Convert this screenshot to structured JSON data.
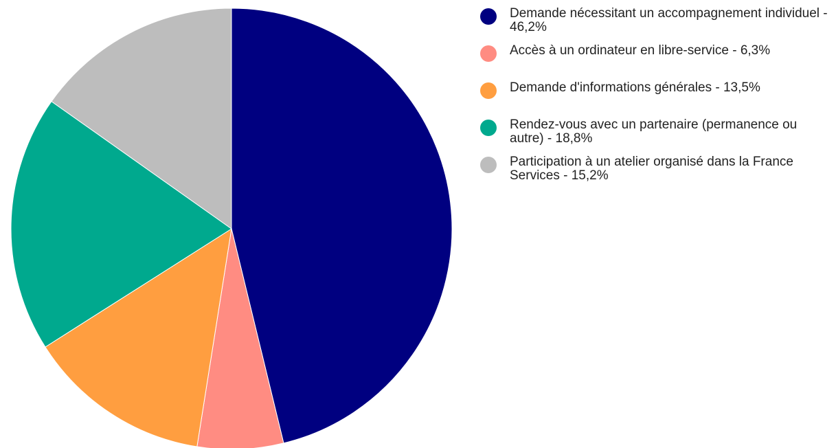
{
  "chart_data": {
    "type": "pie",
    "series": [
      {
        "name": "",
        "values": [
          46.2,
          6.3,
          13.5,
          18.8,
          15.2
        ]
      }
    ],
    "slices": [
      {
        "label": "Demande nécessitant un accompagnement individuel - 46,2%",
        "value": 46.2,
        "color": "#000080"
      },
      {
        "label": "Accès à un ordinateur en libre-service - 6,3%",
        "value": 6.3,
        "color": "#FF8C82"
      },
      {
        "label": "Demande d'informations générales - 13,5%",
        "value": 13.5,
        "color": "#FF9E40"
      },
      {
        "label": "Rendez-vous avec un partenaire (permanence ou autre) - 18,8%",
        "value": 18.8,
        "color": "#00A98E"
      },
      {
        "label": "Participation à un atelier organisé dans la France Services - 15,2%",
        "value": 15.2,
        "color": "#BDBDBD"
      }
    ],
    "title": "",
    "legend_position": "right",
    "start_angle": "top",
    "direction": "clockwise"
  }
}
